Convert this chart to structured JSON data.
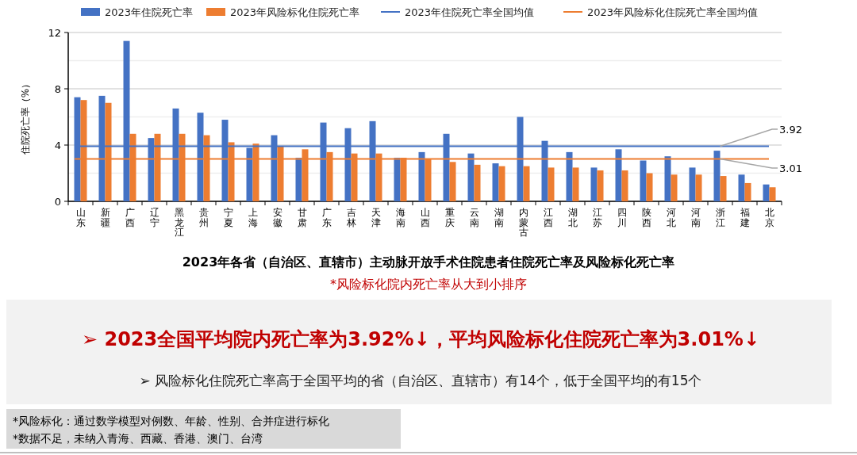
{
  "chart_data": {
    "type": "bar",
    "title": "2023年各省（自治区、直辖市）主动脉开放手术住院患者住院死亡率及风险标化死亡率",
    "subtitle": "*风险标化院内死亡率从大到小排序",
    "ylabel": "住院死亡率（%）",
    "categories": [
      "山东",
      "新疆",
      "广西",
      "辽宁",
      "黑龙江",
      "贵州",
      "宁夏",
      "上海",
      "安徽",
      "甘肃",
      "广东",
      "吉林",
      "天津",
      "海南",
      "山西",
      "重庆",
      "云南",
      "湖南",
      "内蒙古",
      "江西",
      "湖北",
      "江苏",
      "四川",
      "陕西",
      "河北",
      "河南",
      "浙江",
      "福建",
      "北京"
    ],
    "series": [
      {
        "name": "2023年住院死亡率",
        "color": "#4472c4",
        "values": [
          7.4,
          7.5,
          11.4,
          4.5,
          6.6,
          6.3,
          5.8,
          3.8,
          4.7,
          3.1,
          5.6,
          5.2,
          5.7,
          3.1,
          3.5,
          4.8,
          3.4,
          2.7,
          6.0,
          4.3,
          3.5,
          2.4,
          3.7,
          2.9,
          3.2,
          2.4,
          3.6,
          1.9,
          1.2
        ]
      },
      {
        "name": "2023年风险标化住院死亡率",
        "color": "#ed7d31",
        "values": [
          7.2,
          7.0,
          4.8,
          4.8,
          4.8,
          4.7,
          4.2,
          4.1,
          3.9,
          3.7,
          3.5,
          3.4,
          3.4,
          3.1,
          3.0,
          2.8,
          2.6,
          2.5,
          2.5,
          2.4,
          2.4,
          2.2,
          2.2,
          2.0,
          1.9,
          1.9,
          1.8,
          1.3,
          1.0
        ]
      }
    ],
    "ylim": [
      0,
      12
    ],
    "yticks": [
      0,
      {
        "value": 2,
        "label": null
      },
      4,
      {
        "value": 6,
        "label": null
      },
      8,
      {
        "value": 10,
        "label": null
      },
      12
    ],
    "grid": "y",
    "legend": "top",
    "ref_lines": [
      {
        "axis": "y",
        "value": 3.92,
        "label": "2023年住院死亡率全国均值",
        "color": "#4472c4"
      },
      {
        "axis": "y",
        "value": 3.01,
        "label": "2023年风险标化住院死亡率全国均值",
        "color": "#ed7d31"
      }
    ],
    "annotations": [
      "➢ 2023全国平均院内死亡率为3.92%↓，平均风险标化住院死亡率为3.01%↓",
      "➢  风险标化住院死亡率高于全国平均的省（自治区、直辖市）有14个，低于全国平均的有15个",
      "*风险标化：通过数学模型对例数、年龄、性别、合并症进行标化",
      "*数据不足，未纳入青海、西藏、香港、澳门、台湾",
      {
        "text": "3.92",
        "x": "浙江",
        "y": 3.92
      },
      {
        "text": "3.01",
        "x": "浙江",
        "y": 3.01
      }
    ]
  }
}
